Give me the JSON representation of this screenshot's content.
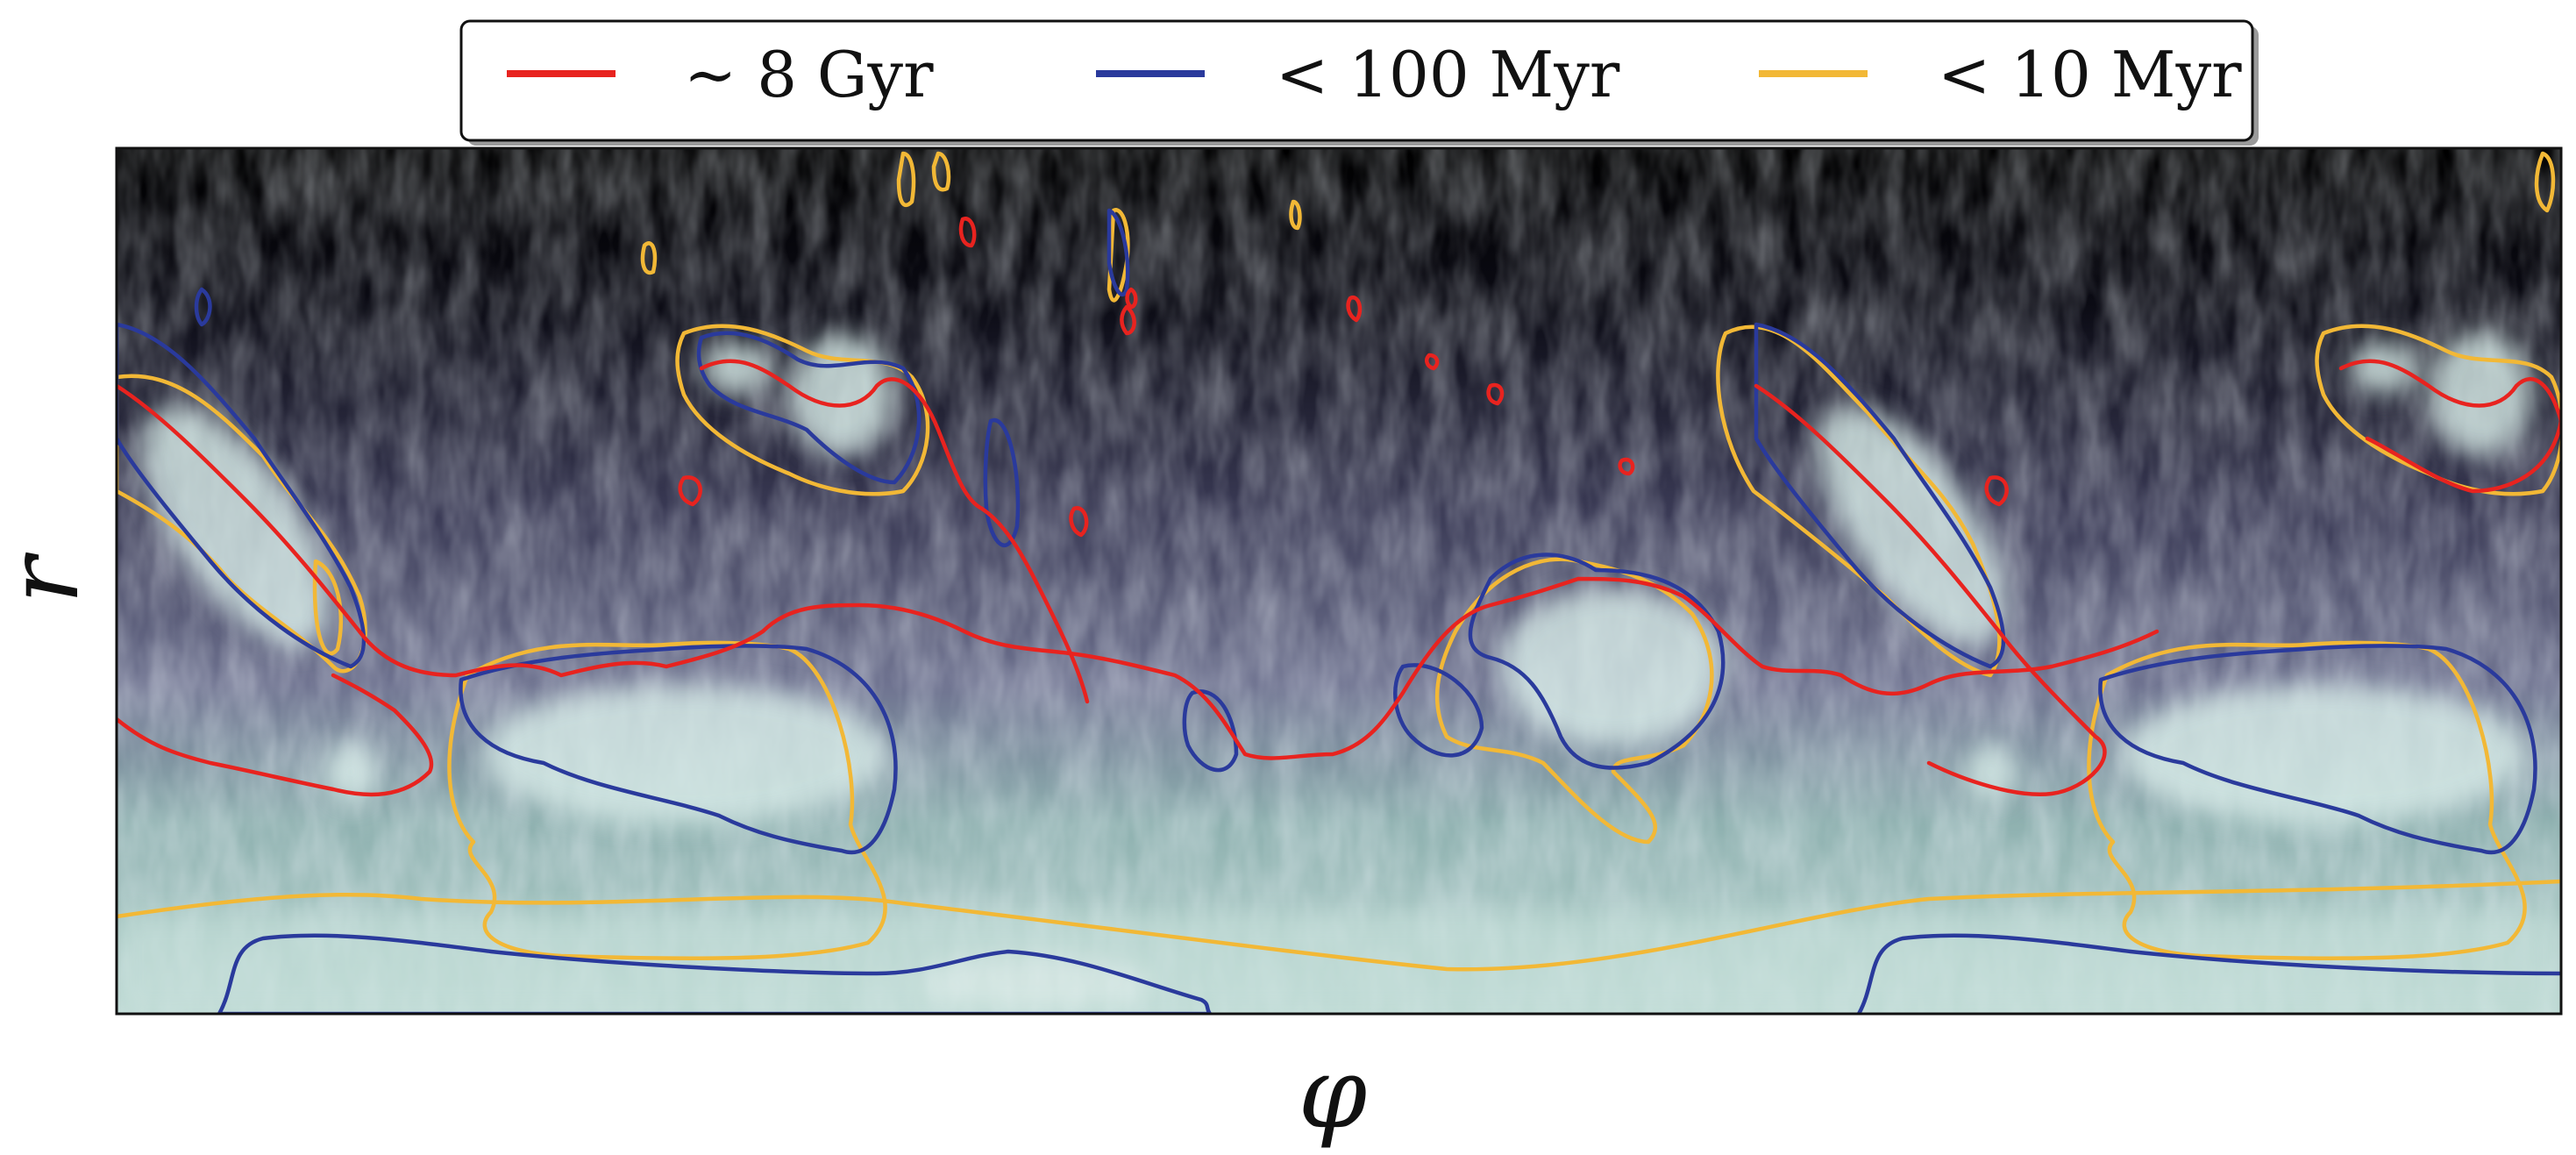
{
  "chart_data": {
    "type": "heatmap",
    "title": "",
    "xlabel": "φ",
    "ylabel": "r",
    "grid": false,
    "ticks": false,
    "legend_placement": "top-center",
    "background": "gas surface density map (dark navy → pale teal/white)",
    "colors": {
      "old_8gyr": "#e8231f",
      "young_100myr": "#2a3a9c",
      "young_10myr": "#f2b836",
      "map_low": "#020205",
      "map_mid": "#5f5f80",
      "map_high": "#cfe6e2"
    },
    "series": [
      {
        "name": "∼ 8 Gyr",
        "color": "#e8231f"
      },
      {
        "name": "< 100 Myr",
        "color": "#2a3a9c"
      },
      {
        "name": "< 10 Myr",
        "color": "#f2b836"
      }
    ]
  }
}
